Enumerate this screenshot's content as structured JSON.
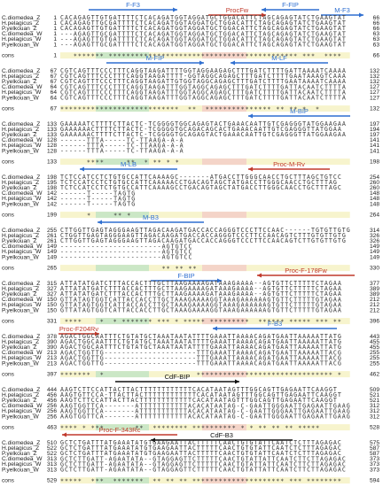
{
  "cons_label": "cons",
  "blocks": [
    {
      "rows": [
        {
          "name": "C.diomedea_Z",
          "start": 1,
          "seq": "CACAGAGTTGTGATTTTCTCACAGATGGTAGGATGCTGGACATTCTAGCAGAGTATCTGAAGTAT",
          "end": 66
        },
        {
          "name": "H.pelagicus_Z",
          "start": 1,
          "seq": "CACAGAGTTGCGATTTTCTCACAGATGGTAGGATGCTGGACATTCTAGCAGAGTATCTGAAGTAT",
          "end": 66
        },
        {
          "name": "P.yelkouan_Z",
          "start": 1,
          "seq": "CACAGAGTTGTGATTTTCTCACAGATGGTAGGATGCTGGACATTCTAGCAGAGTATCTGAAGTAT",
          "end": 66
        },
        {
          "name": "C.diomedea_W",
          "start": 1,
          "seq": "---AGAGTTGCGATTTTCTCACAGATGGTAGGATGCTGGACATTCTAGCAGAGTATCTGAAGTAT",
          "end": 63
        },
        {
          "name": "H.pelagicus_W",
          "start": 1,
          "seq": "---AGAGTTGTGATTTTCTCACAGATGGTAGGATGCTGGACATTCTAGCAGAGTATCTGAAGTAT",
          "end": 63
        },
        {
          "name": "P.yelkouan_W",
          "start": 1,
          "seq": "---AGAGTTGCGATTTTCTCACAGATGGTAGGATGCTGGACATTCTAGCAGAGTATCTGAAGTAT",
          "end": 63
        }
      ],
      "cons": {
        "start": 1,
        "stars": "   ******* ******************************************* ***  ****  ",
        "end": 66
      },
      "primers": [
        "F-F3",
        "ProcFw",
        "F-FIP",
        "M-F3"
      ]
    },
    {
      "rows": [
        {
          "name": "C.diomedea_Z",
          "start": 67,
          "seq": "CGTCAGTTTCCCTTTCAGGTAAGATTTTGGTAGGAAGAGCTTTGATCTTTTGATTAAAATCAAAA",
          "end": 132
        },
        {
          "name": "H.pelagicus_Z",
          "start": 67,
          "seq": "CGTCAGTTTCCCTTTCAGGTAAGATTTT-GGTAGGCAGAGCTTTGATCTTTTGAATAAAGTCAAA",
          "end": 132
        },
        {
          "name": "P.yelkouan_Z",
          "start": 67,
          "seq": "CGTCAGTTTCCCTTTCAGGTAAGATTGTGGTAGGCAGAGCTTTGATCTTTTGAATAAAATCAAAA",
          "end": 132
        },
        {
          "name": "C.diomedea_W",
          "start": 64,
          "seq": "CGTCAGTTTCCCTTTCAGGTAAGATTTGGTAGGCAGAGCTTTGATCTTTTGATTACAATCTTTTA",
          "end": 127
        },
        {
          "name": "H.pelagicus_W",
          "start": 64,
          "seq": "CGTCAGTTTCCCTTTCAGGTAAGATTTGGTAGGCAGAGCTTTGATCTTTTGATTACAATCTTTTA",
          "end": 127
        },
        {
          "name": "P.yelkouan_W",
          "start": 64,
          "seq": "CGTCAGTTTCCCTTTCAGGTAAGATTTGGTAGGCAGAGCTTTGATCTTTTGATTACAATCTTTTA",
          "end": 127
        }
      ],
      "cons": {
        "start": 67,
        "stars": "***************************  **  *************** ** ** *  *    ",
        "end": 132
      },
      "primers": [
        "M-FIP",
        "M-LF"
      ]
    },
    {
      "rows": [
        {
          "name": "C.diomedea_Z",
          "start": 133,
          "seq": "GAAAAATCTTTTCTTACTC-TCGGGGTGGCAGAGTACTGAAACAATTGTCGAGGGTATGGAAGAA",
          "end": 197
        },
        {
          "name": "H.pelagicus_Z",
          "start": 133,
          "seq": "GAAAAAACTTTTCTTACTC-TCGGGGTGCAGACAGCACTGAAACAATTGTCGAGGGTTATGGAA",
          "end": 194
        },
        {
          "name": "P.yelkouan_Z",
          "start": 133,
          "seq": "GAAAAAACTTTTCTTACTC-TCGGGGTGCAGAGTACTGAAACAATTGTCGAGGGTTATGGAAGAA",
          "end": 197
        },
        {
          "name": "C.diomedea_W",
          "start": 128,
          "seq": "------TTTA-----TC-TTAAGA-A-A",
          "end": 141
        },
        {
          "name": "H.pelagicus_W",
          "start": 128,
          "seq": "------TTTA-----TC-TTAAGA-A-A",
          "end": 141
        },
        {
          "name": "P.yelkouan_W",
          "start": 128,
          "seq": "------TTTA-----TC-TTAAGA-A-A",
          "end": 141
        }
      ],
      "cons": {
        "start": 133,
        "stars": "      ****     **  * ** * *",
        "end": 198
      },
      "primers": [
        "M-BIP"
      ]
    },
    {
      "rows": [
        {
          "name": "C.diomedea_Z",
          "start": 198,
          "seq": "TCTCCATCCTCTGTGCCATTCAAAAGC-------ATGACCTTGGGCAACCTGCTTTAGCTGTCC",
          "end": 254
        },
        {
          "name": "H.pelagicus_Z",
          "start": 195,
          "seq": "TCTCCATCCTCTGTGCCATTCAAAAACCTGACAGTAGCTATGACCTTGGGCAACCTGCTTTAG",
          "end": 260
        },
        {
          "name": "P.yelkouan_Z",
          "start": 198,
          "seq": "TCTCCATCCTCTGTGCCATTCAAAAGCCTGACAGTAGCTATGACCTTGGGCAACCTGCTTTAGC",
          "end": 260
        },
        {
          "name": "C.diomedea_W",
          "start": 142,
          "seq": "------T-----TAGTG",
          "end": 148
        },
        {
          "name": "H.pelagicus_W",
          "start": 142,
          "seq": "------T-----TAGTG",
          "end": 148
        },
        {
          "name": "P.yelkouan_W",
          "start": 142,
          "seq": "------T-----TAGTG",
          "end": 148
        }
      ],
      "cons": {
        "start": 199,
        "stars": "      *     ** *",
        "end": 264
      },
      "primers": [
        "M-LB",
        "Proc-M-Rv"
      ]
    },
    {
      "rows": [
        {
          "name": "C.diomedea_Z",
          "start": 255,
          "seq": "CTTGGTTGAGTAGGGAAGTTAGACAAGATGACCACCAGGGTCCCTTCCAAC------TGTGTTGTG",
          "end": 314
        },
        {
          "name": "H.pelagicus_Z",
          "start": 261,
          "seq": "CTGGTTGAGTAGGGAAGTTAGACAAGATGACCACCAGGGTCCCTTCCAACAGTCTTTGTGTTGTG",
          "end": 326
        },
        {
          "name": "P.yelkouan_Z",
          "start": 261,
          "seq": "CTTGGTTGAGTAGGGAAGTTAGACAAGATGACCACCAGGGTCCCTTCCAACAGTCTTGTGTTGTG",
          "end": 326
        },
        {
          "name": "C.diomedea_W",
          "start": 149,
          "seq": "-----------------------AGTGTCC",
          "end": 149
        },
        {
          "name": "H.pelagicus_W",
          "start": 149,
          "seq": "-----------------------AGTGTCC",
          "end": 149
        },
        {
          "name": "P.yelkouan_W",
          "start": 149,
          "seq": "-----------------------AGTGTCC",
          "end": 149
        }
      ],
      "cons": {
        "start": 265,
        "stars": "                       ** ** **",
        "end": 330
      },
      "primers": [
        "M-B3"
      ]
    },
    {
      "rows": [
        {
          "name": "C.diomedea_Z",
          "start": 315,
          "seq": "ATTATATGATCTTTACCACTTTGCTTAAGAAAAGATAAAGAAAA--AGTGTTCTTTTTCTAGAA",
          "end": 377
        },
        {
          "name": "H.pelagicus_Z",
          "start": 327,
          "seq": "ATTATATGATCTTTACCACTTTGCTTAAGAAAAGATAAAGAAAA--AGTGTTCTTTTTCTAGAA",
          "end": 389
        },
        {
          "name": "P.yelkouan_Z",
          "start": 327,
          "seq": "ATTATATGATCTTTACCACTTTGCTTAAGAAAAGATAAAGAAAA--AGTGTTCTTTTTCTAGAA",
          "end": 389
        },
        {
          "name": "C.diomedea_W",
          "start": 150,
          "seq": "GTTATAGTGGTCATTACCACCTTGCTAAAGAAAAGGTAAAGAAAAAAGTGTTCTTTTTGTAGAA",
          "end": 212
        },
        {
          "name": "H.pelagicus_W",
          "start": 150,
          "seq": "GTTATAGTGGTCATTACCACCTTGCTAAAGAAAAGGTAAAGAAAAAAGTGTTCTTTTTGTAGAA",
          "end": 212
        },
        {
          "name": "P.yelkouan_W",
          "start": 150,
          "seq": "GTTATAGTGGTCATTACCACCTTGCTAAAGAAAAGGTAAAGAAAAAAGTGTTCTTTTTGTAGAA",
          "end": 212
        }
      ],
      "cons": {
        "start": 331,
        "stars": " ****    *  * ******* *** * ***** *********  ****** ***** *** **",
        "end": 396
      },
      "primers": [
        "F-BIP",
        "Proc-F-178Fw"
      ]
    },
    {
      "rows": [
        {
          "name": "C.diomedea_Z",
          "start": 378,
          "seq": "AGACTGGCAATTTCTGTATGCTAAATAATATTTTGAAATTAAAACAGATGAATTAAAAATTATG",
          "end": 443
        },
        {
          "name": "H.pelagicus_Z",
          "start": 390,
          "seq": "AGACTGGCAATTTCTGTATGCTAAATAATATTTTGAAATTAAAACAGATGAATTAAAAATTATG",
          "end": 455
        },
        {
          "name": "P.yelkouan_Z",
          "start": 390,
          "seq": "AGACTGGCAATTTCTGTATGCTAAATAATATTTTGAAATTAAAACAGATGAATTAAAAATTATG",
          "end": 455
        },
        {
          "name": "C.diomedea_W",
          "start": 213,
          "seq": "AGACTGGTTG---------------------TTTGAAATTAAAACAGATGAATTAAAAATTACG",
          "end": 255
        },
        {
          "name": "H.pelagicus_W",
          "start": 213,
          "seq": "AGACTGGTTG---------------------TTTGAAATTAAAACAGATGAATTAAAAATTACG",
          "end": 255
        },
        {
          "name": "P.yelkouan_W",
          "start": 213,
          "seq": "AGACTGGTTG---------------------TTTGAAATTAAAACAGATGAATTAAAAATTACG",
          "end": 255
        }
      ],
      "cons": {
        "start": 397,
        "stars": "*******  *                     ******************************* *",
        "end": 462
      },
      "primers": [
        "F-B3",
        "Proc-F204Rv"
      ]
    },
    {
      "rows": [
        {
          "name": "C.diomedea_Z",
          "start": 444,
          "seq": "AAGTCTTCCATTACTTACTTTTTTTTTTTTCACATAATAGTTTGGCAGTTGAGAATTCAAGGT",
          "end": 509
        },
        {
          "name": "H.pelagicus_Z",
          "start": 456,
          "seq": "AAGTGTTCCA-TTACTTACTTTTTTTTTTTTCACATAATAGTTTGGCAGTTGAGAATTCAAGGT",
          "end": 521
        },
        {
          "name": "P.yelkouan_Z",
          "start": 456,
          "seq": "AAGTCTTCCATTACTTACTTTTTTTTTTTTCACATAATAGTTTGGCAGTTGAGAATTCAAGGT",
          "end": 521
        },
        {
          "name": "C.diomedea_W",
          "start": 256,
          "seq": "AAGTGGTTCA-------ATTTTTTTTTTTACACATAATAG-C-GAATTGGGAATTGAGAATTGAAG",
          "end": 312
        },
        {
          "name": "H.pelagicus_W",
          "start": 256,
          "seq": "AAGTGGTTCA-------ATTTTTTTTTTTACACATAATAG-C-GAATTGGGAATTGAGAATTGAAG",
          "end": 312
        },
        {
          "name": "P.yelkouan_W",
          "start": 256,
          "seq": "AAGTGGTTCA-------ATTTTTTTTTTTACACATAATAG-C-GAATTGGGAATTGAGAATTGAAG",
          "end": 312
        }
      ],
      "cons": {
        "start": 463,
        "stars": "**** * ***       **  ******** ********** * * ** ** ** *****",
        "end": 528
      },
      "primers": [
        "CdF-BIP"
      ]
    },
    {
      "rows": [
        {
          "name": "C.diomedea_Z",
          "start": 510,
          "seq": "GCTCTGATTTATGAAATATGTGAAGAATTACTTTTTCAACTGTGTATTCAATCTCTTTAGAGAC",
          "end": 575
        },
        {
          "name": "H.pelagicus_Z",
          "start": 522,
          "seq": "GCTCTGATTTATGAAATATGTGAAGAATTACTTTTTCAACTGTGTATTCAATCTCTTTAGAGAC",
          "end": 587
        },
        {
          "name": "P.yelkouan_Z",
          "start": 522,
          "seq": "GCTCTGATTTATGAAATATGTGAAGAATTACTTTTTCAACTGTGTATTCAATCTCTTTAGAGAC",
          "end": 587
        },
        {
          "name": "C.diomedea_W",
          "start": 313,
          "seq": "GCTCTTGATT-AGAATATA--GTAGGAGTTCTTTTTCAACTGTATTATTCAATCTTCTTAGAGAC",
          "end": 373
        },
        {
          "name": "H.pelagicus_W",
          "start": 313,
          "seq": "GCTCTTGATT-AGAATATA--GTAGGAGTTCTTTTTCAACTGTATTATTCAATCTTCTTAGAGAC",
          "end": 373
        },
        {
          "name": "P.yelkouan_W",
          "start": 313,
          "seq": "GCTCTTGATT-AGAATATA--GTAGGAGTTCTTTTTCAACTGTATTATTCAATCTTCTTAGAGAC",
          "end": 373
        }
      ],
      "cons": {
        "start": 529,
        "stars": "*****  ***  *******  ** ** ** ********************* *** ********",
        "end": 594
      },
      "primers": [
        "Proc-F-343Rc",
        "CdF-B3"
      ]
    }
  ]
}
